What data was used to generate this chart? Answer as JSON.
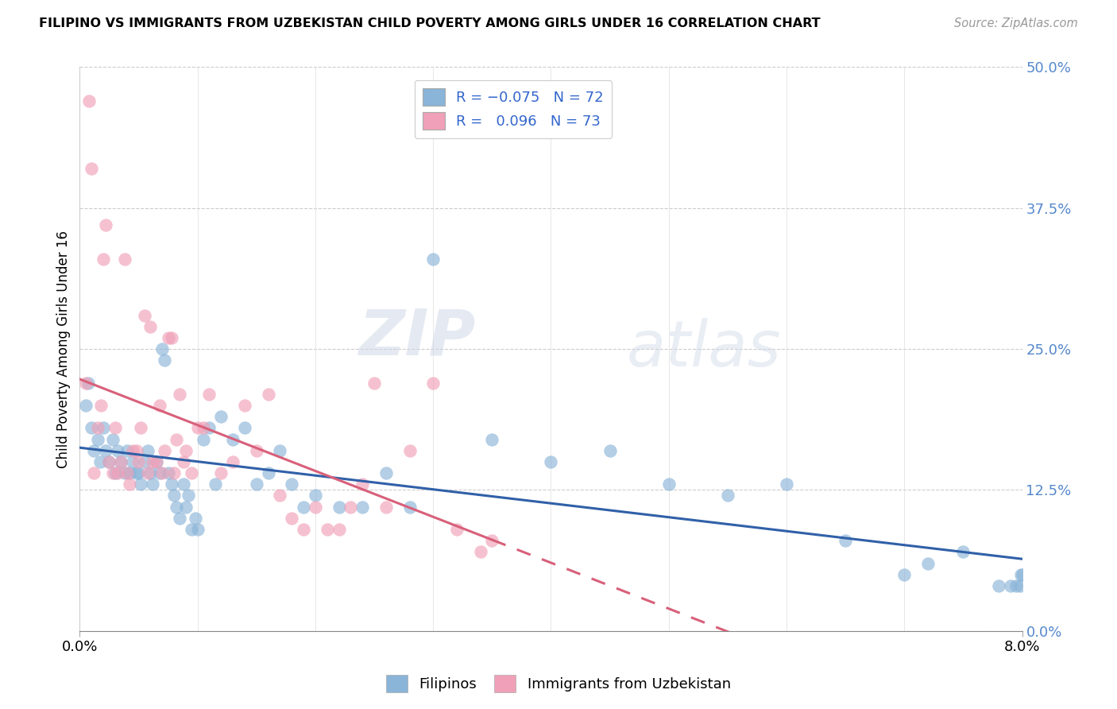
{
  "title": "FILIPINO VS IMMIGRANTS FROM UZBEKISTAN CHILD POVERTY AMONG GIRLS UNDER 16 CORRELATION CHART",
  "source": "Source: ZipAtlas.com",
  "ylabel": "Child Poverty Among Girls Under 16",
  "xlim": [
    0.0,
    8.0
  ],
  "ylim": [
    0.0,
    50.0
  ],
  "right_yticks": [
    0.0,
    12.5,
    25.0,
    37.5,
    50.0
  ],
  "filipinos_color": "#8ab4d8",
  "uzbekistan_color": "#f0a0b8",
  "filipinos_line_color": "#3060a8",
  "uzbekistan_line_color": "#d8607a",
  "watermark_zip": "ZIP",
  "watermark_atlas": "atlas",
  "filipinos_x": [
    0.05,
    0.07,
    0.1,
    0.12,
    0.15,
    0.17,
    0.2,
    0.22,
    0.25,
    0.28,
    0.3,
    0.32,
    0.35,
    0.38,
    0.4,
    0.42,
    0.45,
    0.48,
    0.5,
    0.52,
    0.55,
    0.58,
    0.6,
    0.62,
    0.65,
    0.68,
    0.7,
    0.72,
    0.75,
    0.78,
    0.8,
    0.82,
    0.85,
    0.88,
    0.9,
    0.92,
    0.95,
    0.98,
    1.0,
    1.05,
    1.1,
    1.15,
    1.2,
    1.3,
    1.4,
    1.5,
    1.6,
    1.7,
    1.8,
    1.9,
    2.0,
    2.2,
    2.4,
    2.6,
    2.8,
    3.0,
    3.5,
    4.0,
    4.5,
    5.0,
    5.5,
    6.0,
    6.5,
    7.0,
    7.2,
    7.5,
    7.8,
    7.9,
    7.95,
    7.98,
    7.99,
    8.0
  ],
  "filipinos_y": [
    20.0,
    22.0,
    18.0,
    16.0,
    17.0,
    15.0,
    18.0,
    16.0,
    15.0,
    17.0,
    14.0,
    16.0,
    15.0,
    14.0,
    16.0,
    14.0,
    15.0,
    14.0,
    14.0,
    13.0,
    15.0,
    16.0,
    14.0,
    13.0,
    15.0,
    14.0,
    25.0,
    24.0,
    14.0,
    13.0,
    12.0,
    11.0,
    10.0,
    13.0,
    11.0,
    12.0,
    9.0,
    10.0,
    9.0,
    17.0,
    18.0,
    13.0,
    19.0,
    17.0,
    18.0,
    13.0,
    14.0,
    16.0,
    13.0,
    11.0,
    12.0,
    11.0,
    11.0,
    14.0,
    11.0,
    33.0,
    17.0,
    15.0,
    16.0,
    13.0,
    12.0,
    13.0,
    8.0,
    5.0,
    6.0,
    7.0,
    4.0,
    4.0,
    4.0,
    4.0,
    5.0,
    5.0
  ],
  "uzbekistan_x": [
    0.05,
    0.08,
    0.1,
    0.12,
    0.15,
    0.18,
    0.2,
    0.22,
    0.25,
    0.28,
    0.3,
    0.32,
    0.35,
    0.38,
    0.4,
    0.42,
    0.45,
    0.48,
    0.5,
    0.52,
    0.55,
    0.58,
    0.6,
    0.62,
    0.65,
    0.68,
    0.7,
    0.72,
    0.75,
    0.78,
    0.8,
    0.82,
    0.85,
    0.88,
    0.9,
    0.95,
    1.0,
    1.05,
    1.1,
    1.2,
    1.3,
    1.4,
    1.5,
    1.6,
    1.7,
    1.8,
    1.9,
    2.0,
    2.1,
    2.2,
    2.3,
    2.4,
    2.5,
    2.6,
    2.8,
    3.0,
    3.2,
    3.4,
    3.5
  ],
  "uzbekistan_y": [
    22.0,
    47.0,
    41.0,
    14.0,
    18.0,
    20.0,
    33.0,
    36.0,
    15.0,
    14.0,
    18.0,
    14.0,
    15.0,
    33.0,
    14.0,
    13.0,
    16.0,
    16.0,
    15.0,
    18.0,
    28.0,
    14.0,
    27.0,
    15.0,
    15.0,
    20.0,
    14.0,
    16.0,
    26.0,
    26.0,
    14.0,
    17.0,
    21.0,
    15.0,
    16.0,
    14.0,
    18.0,
    18.0,
    21.0,
    14.0,
    15.0,
    20.0,
    16.0,
    21.0,
    12.0,
    10.0,
    9.0,
    11.0,
    9.0,
    9.0,
    11.0,
    13.0,
    22.0,
    11.0,
    16.0,
    22.0,
    9.0,
    7.0,
    8.0
  ],
  "uz_solid_xmax": 3.5,
  "trend_xmax_dash": 8.0
}
